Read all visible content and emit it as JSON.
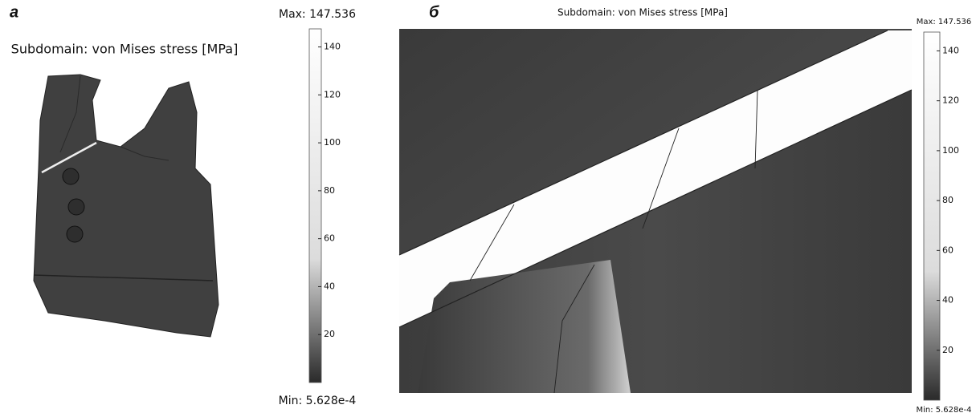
{
  "panels": [
    {
      "label": "а",
      "title": "Subdomain: von Mises stress [MPa]",
      "max": {
        "value": 147.536,
        "label": "Max: 147.536"
      },
      "min": {
        "value": 0.0005628,
        "label": "Min: 5.628e-4"
      },
      "colorbar": {
        "ticks": [
          20,
          40,
          60,
          80,
          100,
          120,
          140
        ]
      }
    },
    {
      "label": "б",
      "title": "Subdomain: von Mises stress [MPa]",
      "max": {
        "value": 147.536,
        "label": "Max: 147.536"
      },
      "min": {
        "value": 0.0005628,
        "label": "Min: 5.628e-4"
      },
      "colorbar": {
        "ticks": [
          20,
          40,
          60,
          80,
          100,
          120,
          140
        ]
      }
    }
  ]
}
